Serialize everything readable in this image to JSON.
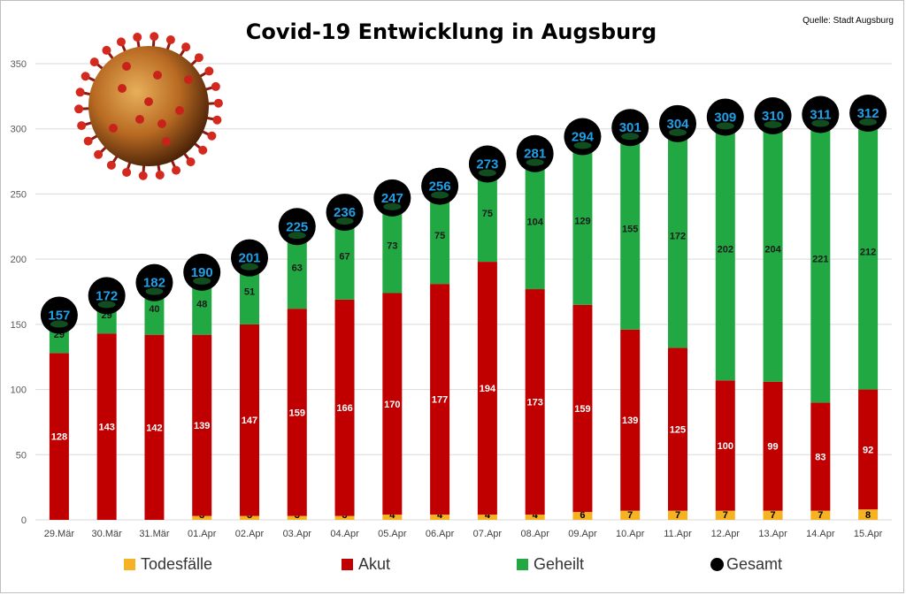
{
  "header": {
    "title": "Covid-19 Entwicklung in Augsburg",
    "source": "Quelle: Stadt Augsburg"
  },
  "legend": {
    "items": [
      {
        "label": "Todesfälle",
        "color": "#f5b324",
        "shape": "square"
      },
      {
        "label": "Akut",
        "color": "#c00000",
        "shape": "square"
      },
      {
        "label": "Geheilt",
        "color": "#21a843",
        "shape": "square"
      },
      {
        "label": "Gesamt",
        "color": "#000000",
        "shape": "circle"
      }
    ]
  },
  "image": {
    "icon": "coronavirus-icon"
  },
  "chart_data": {
    "type": "bar",
    "stacked": true,
    "title": "Covid-19 Entwicklung in Augsburg",
    "categories": [
      "29.Mär",
      "30.Mär",
      "31.Mär",
      "01.Apr",
      "02.Apr",
      "03.Apr",
      "04.Apr",
      "05.Apr",
      "06.Apr",
      "07.Apr",
      "08.Apr",
      "09.Apr",
      "10.Apr",
      "11.Apr",
      "12.Apr",
      "13.Apr",
      "14.Apr",
      "15.Apr"
    ],
    "series": [
      {
        "name": "Todesfälle",
        "color": "#f5b324",
        "values": [
          0,
          0,
          0,
          3,
          3,
          3,
          3,
          4,
          4,
          4,
          4,
          6,
          7,
          7,
          7,
          7,
          7,
          8
        ]
      },
      {
        "name": "Akut",
        "color": "#c00000",
        "values": [
          128,
          143,
          142,
          139,
          147,
          159,
          166,
          170,
          177,
          194,
          173,
          159,
          139,
          125,
          100,
          99,
          83,
          92
        ]
      },
      {
        "name": "Geheilt",
        "color": "#21a843",
        "values": [
          29,
          29,
          40,
          48,
          51,
          63,
          67,
          73,
          75,
          75,
          104,
          129,
          155,
          172,
          202,
          204,
          221,
          212
        ]
      }
    ],
    "totals": {
      "name": "Gesamt",
      "color": "#000000",
      "label_color": "#1ea0e8",
      "values": [
        157,
        172,
        182,
        190,
        201,
        225,
        236,
        247,
        256,
        273,
        281,
        294,
        301,
        304,
        309,
        310,
        311,
        312
      ]
    },
    "ylim": [
      0,
      350
    ],
    "yticks": [
      0,
      50,
      100,
      150,
      200,
      250,
      300,
      350
    ],
    "grid": true,
    "legend_position": "bottom"
  }
}
